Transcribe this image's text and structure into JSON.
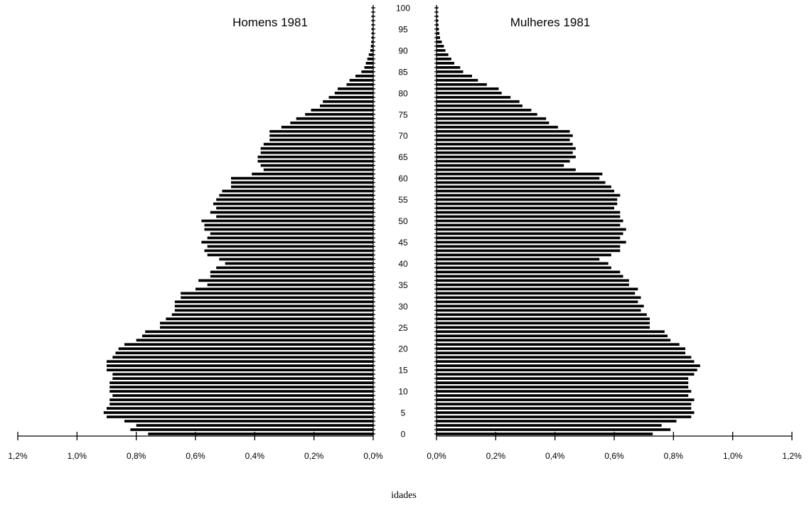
{
  "chart_data": {
    "type": "bar",
    "orientation": "horizontal",
    "layout": "population-pyramid",
    "xlabel": "idades",
    "x_unit": "% of population",
    "x_range": [
      0,
      1.2
    ],
    "x_ticks": [
      0,
      0.2,
      0.4,
      0.6,
      0.8,
      1.0,
      1.2
    ],
    "x_tick_labels": [
      "0,0%",
      "0,2%",
      "0,4%",
      "0,6%",
      "0,8%",
      "1,0%",
      "1,2%"
    ],
    "age_range": [
      0,
      100
    ],
    "age_ticks": [
      0,
      5,
      10,
      15,
      20,
      25,
      30,
      35,
      40,
      45,
      50,
      55,
      60,
      65,
      70,
      75,
      80,
      85,
      90,
      95,
      100
    ],
    "age_tick_labels": [
      "0",
      "5",
      "10",
      "15",
      "20",
      "25",
      "30",
      "35",
      "40",
      "45",
      "50",
      "55",
      "60",
      "65",
      "70",
      "75",
      "80",
      "85",
      "90",
      "95",
      "100"
    ],
    "series": [
      {
        "name": "Homens 1981",
        "side": "left",
        "ages": [
          0,
          1,
          2,
          3,
          4,
          5,
          6,
          7,
          8,
          9,
          10,
          11,
          12,
          13,
          14,
          15,
          16,
          17,
          18,
          19,
          20,
          21,
          22,
          23,
          24,
          25,
          26,
          27,
          28,
          29,
          30,
          31,
          32,
          33,
          34,
          35,
          36,
          37,
          38,
          39,
          40,
          41,
          42,
          43,
          44,
          45,
          46,
          47,
          48,
          49,
          50,
          51,
          52,
          53,
          54,
          55,
          56,
          57,
          58,
          59,
          60,
          61,
          62,
          63,
          64,
          65,
          66,
          67,
          68,
          69,
          70,
          71,
          72,
          73,
          74,
          75,
          76,
          77,
          78,
          79,
          80,
          81,
          82,
          83,
          84,
          85,
          86,
          87,
          88,
          89,
          90,
          91,
          92,
          93,
          94,
          95,
          96,
          97,
          98,
          99,
          100
        ],
        "values": [
          0.76,
          0.82,
          0.8,
          0.84,
          0.9,
          0.91,
          0.9,
          0.89,
          0.89,
          0.88,
          0.89,
          0.89,
          0.89,
          0.88,
          0.88,
          0.9,
          0.9,
          0.9,
          0.88,
          0.87,
          0.86,
          0.84,
          0.8,
          0.78,
          0.77,
          0.72,
          0.72,
          0.7,
          0.68,
          0.67,
          0.67,
          0.67,
          0.65,
          0.65,
          0.6,
          0.56,
          0.59,
          0.55,
          0.55,
          0.53,
          0.5,
          0.52,
          0.56,
          0.57,
          0.56,
          0.58,
          0.56,
          0.55,
          0.57,
          0.57,
          0.58,
          0.53,
          0.55,
          0.53,
          0.54,
          0.53,
          0.52,
          0.51,
          0.48,
          0.48,
          0.48,
          0.41,
          0.37,
          0.38,
          0.39,
          0.39,
          0.38,
          0.38,
          0.37,
          0.35,
          0.35,
          0.35,
          0.31,
          0.28,
          0.26,
          0.23,
          0.21,
          0.18,
          0.17,
          0.15,
          0.13,
          0.12,
          0.09,
          0.08,
          0.06,
          0.04,
          0.03,
          0.025,
          0.02,
          0.015,
          0.01,
          0.008,
          0.006,
          0.005,
          0.004,
          0.004,
          0.003,
          0.003,
          0.003,
          0.002,
          0.002
        ]
      },
      {
        "name": "Mulheres 1981",
        "side": "right",
        "ages": [
          0,
          1,
          2,
          3,
          4,
          5,
          6,
          7,
          8,
          9,
          10,
          11,
          12,
          13,
          14,
          15,
          16,
          17,
          18,
          19,
          20,
          21,
          22,
          23,
          24,
          25,
          26,
          27,
          28,
          29,
          30,
          31,
          32,
          33,
          34,
          35,
          36,
          37,
          38,
          39,
          40,
          41,
          42,
          43,
          44,
          45,
          46,
          47,
          48,
          49,
          50,
          51,
          52,
          53,
          54,
          55,
          56,
          57,
          58,
          59,
          60,
          61,
          62,
          63,
          64,
          65,
          66,
          67,
          68,
          69,
          70,
          71,
          72,
          73,
          74,
          75,
          76,
          77,
          78,
          79,
          80,
          81,
          82,
          83,
          84,
          85,
          86,
          87,
          88,
          89,
          90,
          91,
          92,
          93,
          94,
          95,
          96,
          97,
          98,
          99,
          100
        ],
        "values": [
          0.73,
          0.79,
          0.76,
          0.81,
          0.86,
          0.87,
          0.86,
          0.86,
          0.87,
          0.85,
          0.86,
          0.85,
          0.85,
          0.85,
          0.87,
          0.88,
          0.89,
          0.87,
          0.86,
          0.84,
          0.84,
          0.82,
          0.79,
          0.78,
          0.77,
          0.72,
          0.72,
          0.72,
          0.71,
          0.69,
          0.7,
          0.68,
          0.69,
          0.67,
          0.68,
          0.65,
          0.65,
          0.63,
          0.62,
          0.59,
          0.58,
          0.55,
          0.59,
          0.62,
          0.62,
          0.64,
          0.62,
          0.63,
          0.64,
          0.62,
          0.63,
          0.62,
          0.62,
          0.6,
          0.61,
          0.61,
          0.62,
          0.6,
          0.59,
          0.57,
          0.55,
          0.56,
          0.47,
          0.43,
          0.45,
          0.47,
          0.46,
          0.47,
          0.46,
          0.45,
          0.46,
          0.45,
          0.41,
          0.38,
          0.37,
          0.34,
          0.32,
          0.29,
          0.28,
          0.25,
          0.22,
          0.21,
          0.17,
          0.14,
          0.12,
          0.09,
          0.08,
          0.06,
          0.05,
          0.04,
          0.03,
          0.025,
          0.018,
          0.012,
          0.01,
          0.008,
          0.006,
          0.005,
          0.004,
          0.003,
          0.003
        ]
      }
    ]
  }
}
